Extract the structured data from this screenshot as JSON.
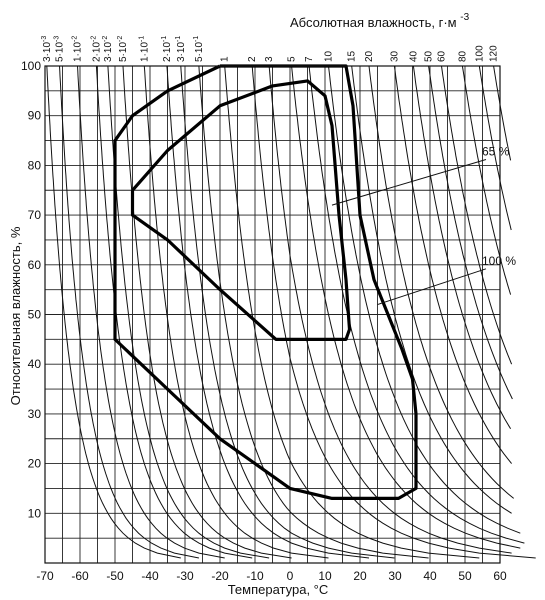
{
  "chart_data": {
    "type": "line",
    "title": "",
    "xlabel": "Температура, °С",
    "ylabel": "Относительная влажность, %",
    "top_xlabel": "Абсолютная влажность, г·м",
    "top_xlabel_exponent": "-3",
    "xlim": [
      -70,
      60
    ],
    "ylim": [
      0,
      100
    ],
    "x_ticks": [
      -70,
      -60,
      -50,
      -40,
      -30,
      -20,
      -10,
      0,
      10,
      20,
      30,
      40,
      50,
      60
    ],
    "x_tick_labels": [
      "-70",
      "-60",
      "-50",
      "-40",
      "-30",
      "-20",
      "-10",
      "0",
      "10",
      "20",
      "30",
      "40",
      "50",
      "60"
    ],
    "y_ticks": [
      10,
      20,
      30,
      40,
      50,
      60,
      70,
      80,
      90,
      100
    ],
    "y_tick_labels": [
      "10",
      "20",
      "30",
      "40",
      "50",
      "60",
      "70",
      "80",
      "90",
      "100"
    ],
    "grid": true,
    "absolute_humidity_lines": [
      {
        "label": "3·10",
        "exp": "-3",
        "value": 0.003
      },
      {
        "label": "5·10",
        "exp": "-3",
        "value": 0.005
      },
      {
        "label": "1·10",
        "exp": "-2",
        "value": 0.01
      },
      {
        "label": "2·10",
        "exp": "-2",
        "value": 0.02
      },
      {
        "label": "3·10",
        "exp": "-2",
        "value": 0.03
      },
      {
        "label": "5·10",
        "exp": "-2",
        "value": 0.05
      },
      {
        "label": "1·10",
        "exp": "-1",
        "value": 0.1
      },
      {
        "label": "2·10",
        "exp": "-1",
        "value": 0.2
      },
      {
        "label": "3·10",
        "exp": "-1",
        "value": 0.3
      },
      {
        "label": "5·10",
        "exp": "-1",
        "value": 0.5
      },
      {
        "label": "1",
        "exp": "",
        "value": 1
      },
      {
        "label": "2",
        "exp": "",
        "value": 2
      },
      {
        "label": "3",
        "exp": "",
        "value": 3
      },
      {
        "label": "5",
        "exp": "",
        "value": 5
      },
      {
        "label": "7",
        "exp": "",
        "value": 7
      },
      {
        "label": "10",
        "exp": "",
        "value": 10
      },
      {
        "label": "15",
        "exp": "",
        "value": 15
      },
      {
        "label": "20",
        "exp": "",
        "value": 20
      },
      {
        "label": "30",
        "exp": "",
        "value": 30
      },
      {
        "label": "40",
        "exp": "",
        "value": 40
      },
      {
        "label": "50",
        "exp": "",
        "value": 50
      },
      {
        "label": "60",
        "exp": "",
        "value": 60
      },
      {
        "label": "80",
        "exp": "",
        "value": 80
      },
      {
        "label": "100",
        "exp": "",
        "value": 100
      },
      {
        "label": "120",
        "exp": "",
        "value": 120
      }
    ],
    "series": [
      {
        "name": "100 %",
        "points": [
          [
            -20,
            100
          ],
          [
            16,
            100
          ],
          [
            18,
            92
          ],
          [
            20,
            70
          ],
          [
            24,
            57
          ],
          [
            28,
            50
          ],
          [
            32,
            43
          ],
          [
            35,
            37
          ],
          [
            36,
            30
          ],
          [
            36,
            15
          ],
          [
            31,
            13
          ],
          [
            12,
            13
          ],
          [
            0,
            15
          ],
          [
            -20,
            25
          ],
          [
            -35,
            35
          ],
          [
            -50,
            45
          ],
          [
            -50,
            85
          ],
          [
            -45,
            90
          ],
          [
            -35,
            95
          ],
          [
            -20,
            100
          ]
        ]
      },
      {
        "name": "65 %",
        "points": [
          [
            -45,
            75
          ],
          [
            -35,
            83
          ],
          [
            -20,
            92
          ],
          [
            -5,
            96
          ],
          [
            5,
            97
          ],
          [
            10,
            94
          ],
          [
            12,
            88
          ],
          [
            14,
            70
          ],
          [
            16,
            57
          ],
          [
            17,
            47
          ],
          [
            16,
            45
          ],
          [
            -4,
            45
          ],
          [
            -20,
            55
          ],
          [
            -35,
            65
          ],
          [
            -45,
            70
          ],
          [
            -45,
            75
          ]
        ]
      }
    ],
    "annotations": [
      {
        "text": "65 %",
        "x": 56,
        "y": 82,
        "target_x": 12,
        "target_y": 72
      },
      {
        "text": "100 %",
        "x": 56,
        "y": 60,
        "target_x": 25,
        "target_y": 52
      }
    ]
  }
}
